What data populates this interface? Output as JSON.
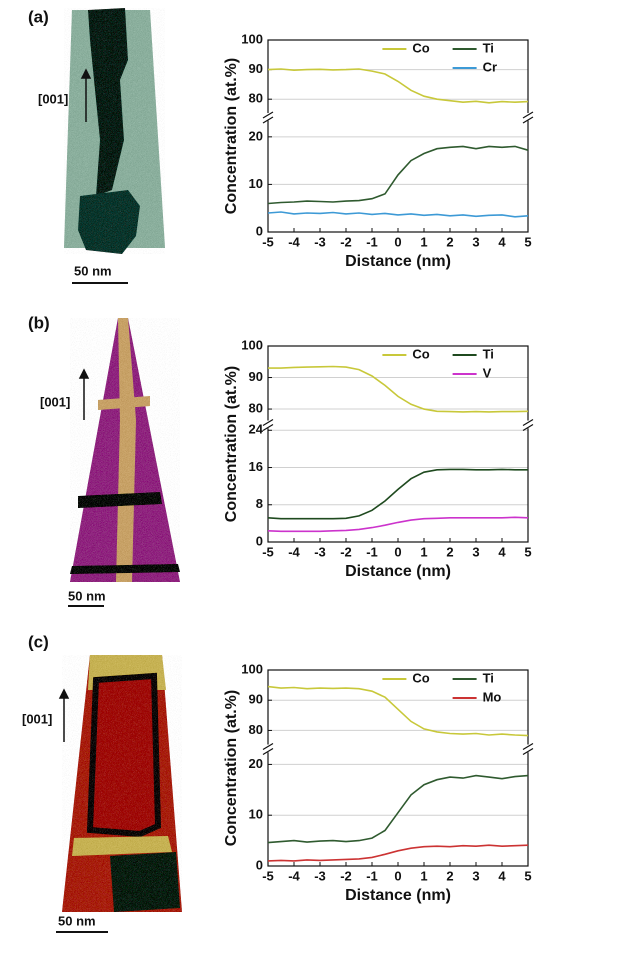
{
  "chart_data": [
    {
      "type": "line",
      "panel_label": "(a)",
      "direction_label": "[001]",
      "scale_label": "50 nm",
      "y_label": "Concentration (at.%)",
      "x_label": "Distance  (nm)",
      "xlim": [
        -5,
        5
      ],
      "xticks": [
        -5,
        -4,
        -3,
        -2,
        -1,
        0,
        1,
        2,
        3,
        4,
        5
      ],
      "segments": [
        {
          "ylim": [
            0,
            23
          ],
          "yticks": [
            0,
            10,
            20
          ]
        },
        {
          "ylim": [
            76,
            100
          ],
          "yticks": [
            80,
            90,
            100
          ]
        }
      ],
      "grid": true,
      "x": [
        -5,
        -4.5,
        -4,
        -3.5,
        -3,
        -2.5,
        -2,
        -1.5,
        -1,
        -0.5,
        0,
        0.5,
        1,
        1.5,
        2,
        2.5,
        3,
        3.5,
        4,
        4.5,
        5
      ],
      "series": [
        {
          "name": "Co",
          "color": "#c8c83a",
          "values": [
            90,
            90.2,
            89.8,
            90,
            90.1,
            89.9,
            90,
            90.2,
            89.5,
            88.5,
            86,
            83,
            81,
            80,
            79.5,
            79,
            79.3,
            78.8,
            79.2,
            79,
            79.2
          ]
        },
        {
          "name": "Ti",
          "color": "#2f5a2f",
          "values": [
            6,
            6.2,
            6.3,
            6.5,
            6.4,
            6.3,
            6.5,
            6.6,
            7,
            8,
            12,
            15,
            16.5,
            17.5,
            17.8,
            18,
            17.5,
            18,
            17.8,
            18,
            17.2
          ]
        },
        {
          "name": "Cr",
          "color": "#3d9ad6",
          "values": [
            4,
            4.2,
            3.8,
            4,
            3.9,
            4.1,
            3.8,
            4,
            3.7,
            3.9,
            3.6,
            3.8,
            3.5,
            3.7,
            3.4,
            3.6,
            3.3,
            3.5,
            3.6,
            3.2,
            3.4
          ]
        }
      ]
    },
    {
      "type": "line",
      "panel_label": "(b)",
      "direction_label": "[001]",
      "scale_label": "50 nm",
      "y_label": "Concentration (at.%)",
      "x_label": "Distance  (nm)",
      "xlim": [
        -5,
        5
      ],
      "xticks": [
        -5,
        -4,
        -3,
        -2,
        -1,
        0,
        1,
        2,
        3,
        4,
        5
      ],
      "segments": [
        {
          "ylim": [
            0,
            24
          ],
          "yticks": [
            0,
            8,
            16,
            24
          ]
        },
        {
          "ylim": [
            77,
            100
          ],
          "yticks": [
            80,
            90,
            100
          ]
        }
      ],
      "grid": true,
      "x": [
        -5,
        -4.5,
        -4,
        -3.5,
        -3,
        -2.5,
        -2,
        -1.5,
        -1,
        -0.5,
        0,
        0.5,
        1,
        1.5,
        2,
        2.5,
        3,
        3.5,
        4,
        4.5,
        5
      ],
      "series": [
        {
          "name": "Co",
          "color": "#c8c83a",
          "values": [
            93,
            93,
            93.2,
            93.3,
            93.4,
            93.5,
            93.3,
            92.5,
            90.5,
            87.5,
            84,
            81.5,
            80,
            79.3,
            79.2,
            79.1,
            79.2,
            79.1,
            79.2,
            79.2,
            79.3
          ]
        },
        {
          "name": "Ti",
          "color": "#1f4a1f",
          "values": [
            5.2,
            5,
            5,
            5,
            5,
            5,
            5.1,
            5.6,
            6.8,
            8.8,
            11.3,
            13.6,
            15,
            15.5,
            15.6,
            15.6,
            15.5,
            15.5,
            15.6,
            15.5,
            15.5
          ]
        },
        {
          "name": "V",
          "color": "#cc33cc",
          "values": [
            2.4,
            2.3,
            2.3,
            2.3,
            2.3,
            2.4,
            2.5,
            2.7,
            3.1,
            3.6,
            4.2,
            4.7,
            5,
            5.1,
            5.2,
            5.2,
            5.2,
            5.2,
            5.2,
            5.3,
            5.2
          ]
        }
      ]
    },
    {
      "type": "line",
      "panel_label": "(c)",
      "direction_label": "[001]",
      "scale_label": "50 nm",
      "y_label": "Concentration (at.%)",
      "x_label": "Distance  (nm)",
      "xlim": [
        -5,
        5
      ],
      "xticks": [
        -5,
        -4,
        -3,
        -2,
        -1,
        0,
        1,
        2,
        3,
        4,
        5
      ],
      "segments": [
        {
          "ylim": [
            0,
            22
          ],
          "yticks": [
            0,
            10,
            20
          ]
        },
        {
          "ylim": [
            76,
            100
          ],
          "yticks": [
            80,
            90,
            100
          ]
        }
      ],
      "grid": true,
      "x": [
        -5,
        -4.5,
        -4,
        -3.5,
        -3,
        -2.5,
        -2,
        -1.5,
        -1,
        -0.5,
        0,
        0.5,
        1,
        1.5,
        2,
        2.5,
        3,
        3.5,
        4,
        4.5,
        5
      ],
      "series": [
        {
          "name": "Co",
          "color": "#c8c83a",
          "values": [
            94.5,
            94,
            94.2,
            93.8,
            94,
            93.9,
            94,
            93.8,
            93,
            91,
            87,
            83,
            80.5,
            79.5,
            79,
            78.8,
            79,
            78.5,
            78.8,
            78.5,
            78.3
          ]
        },
        {
          "name": "Ti",
          "color": "#2f5a2f",
          "values": [
            4.6,
            4.8,
            5,
            4.7,
            4.9,
            5,
            4.8,
            5,
            5.5,
            7,
            10.5,
            14,
            16,
            17,
            17.5,
            17.3,
            17.8,
            17.5,
            17.2,
            17.6,
            17.8
          ]
        },
        {
          "name": "Mo",
          "color": "#cc3333",
          "values": [
            1,
            1.1,
            1,
            1.2,
            1.1,
            1.2,
            1.3,
            1.4,
            1.7,
            2.3,
            3,
            3.5,
            3.8,
            3.9,
            3.8,
            4,
            3.9,
            4.1,
            3.9,
            4,
            4.1
          ]
        }
      ]
    }
  ]
}
